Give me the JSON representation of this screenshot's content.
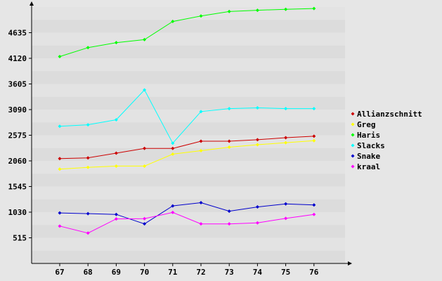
{
  "chart_data": {
    "type": "line",
    "x": [
      "67",
      "68",
      "69",
      "70",
      "71",
      "72",
      "73",
      "74",
      "75",
      "76"
    ],
    "y_ticks": [
      "515",
      "1030",
      "1545",
      "2060",
      "2575",
      "3090",
      "3605",
      "4120",
      "4635"
    ],
    "ylim": [
      0,
      5150
    ],
    "grid": true,
    "legend_position": "right",
    "series": [
      {
        "name": "Allianzschnitt",
        "color": "#cc0000",
        "values": [
          2105,
          2120,
          2215,
          2310,
          2310,
          2455,
          2455,
          2485,
          2525,
          2555
        ]
      },
      {
        "name": "Greg",
        "color": "#ffff00",
        "values": [
          1895,
          1930,
          1955,
          1955,
          2195,
          2265,
          2335,
          2385,
          2425,
          2465
        ]
      },
      {
        "name": "Haris",
        "color": "#00ff00",
        "values": [
          4155,
          4335,
          4435,
          4495,
          4860,
          4970,
          5060,
          5085,
          5105,
          5120
        ]
      },
      {
        "name": "Slacks",
        "color": "#00ffff",
        "values": [
          2755,
          2785,
          2885,
          3485,
          2415,
          3050,
          3110,
          3125,
          3110,
          3110
        ]
      },
      {
        "name": "Snake",
        "color": "#0000cc",
        "values": [
          1015,
          1000,
          985,
          795,
          1155,
          1220,
          1050,
          1135,
          1195,
          1175
        ]
      },
      {
        "name": "kraal",
        "color": "#ff00ff",
        "values": [
          750,
          610,
          895,
          900,
          1025,
          795,
          795,
          815,
          905,
          985
        ]
      }
    ]
  }
}
